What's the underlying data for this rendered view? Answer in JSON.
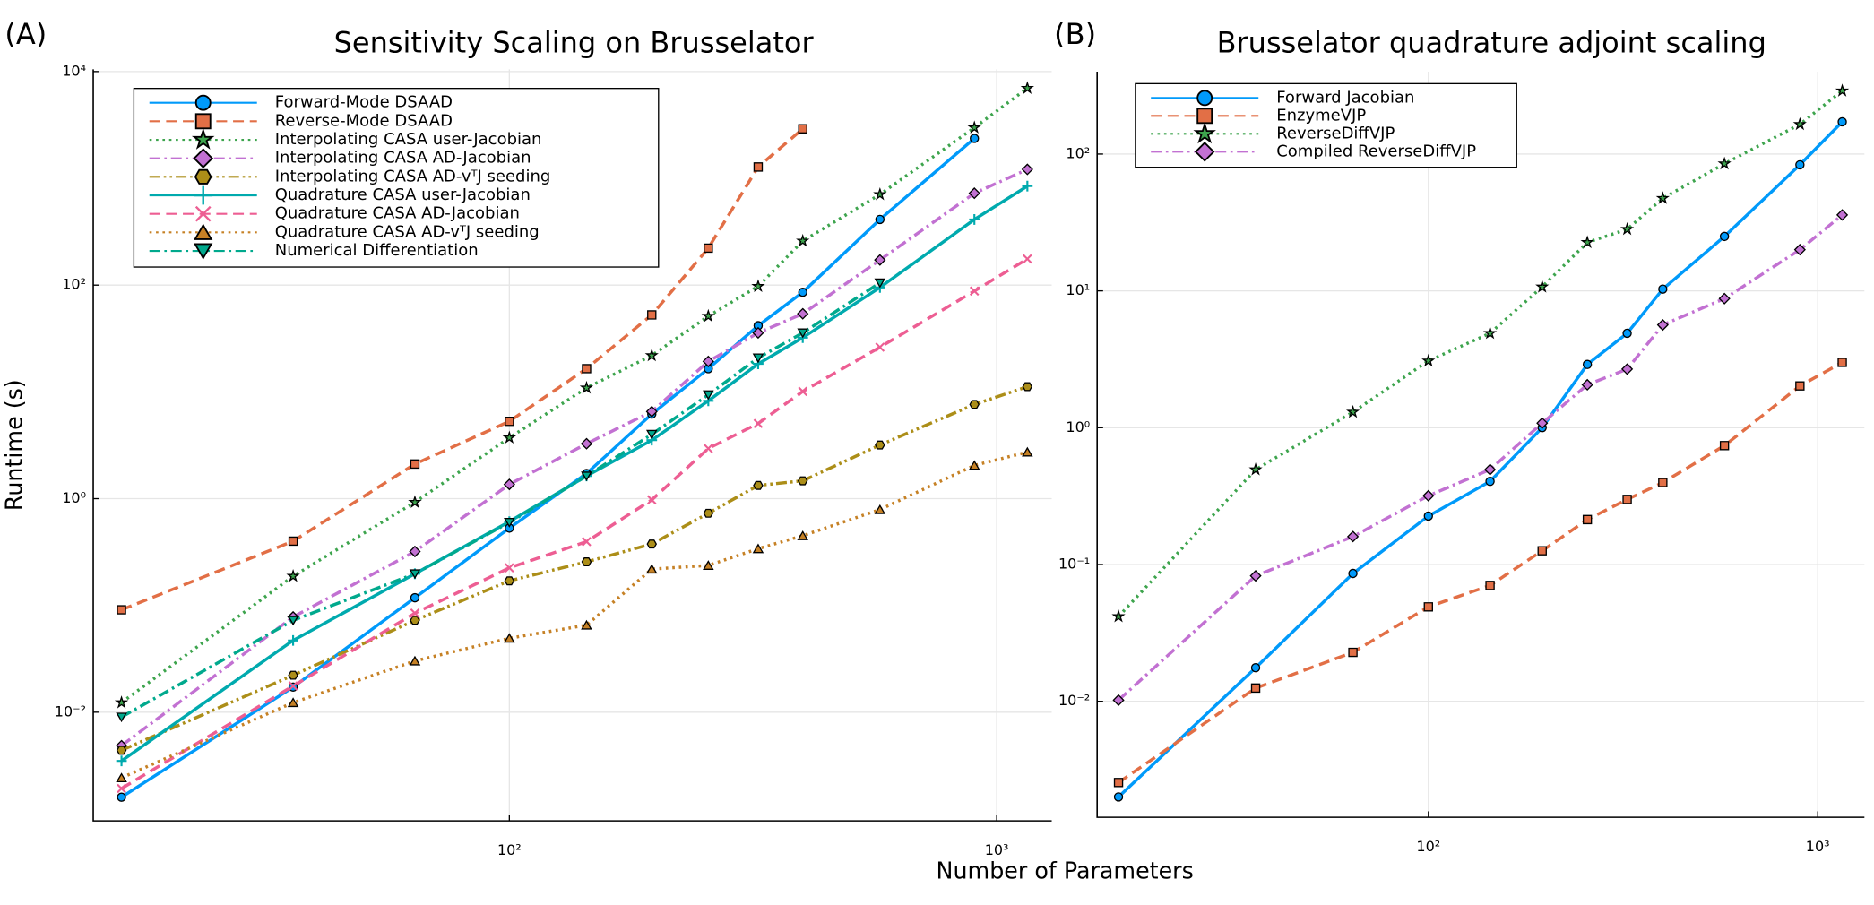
{
  "chart_data": [
    {
      "type": "line",
      "panel": "(A)",
      "title": "Sensitivity Scaling on Brusselator",
      "xlabel": "Number of Parameters",
      "ylabel": "Runtime (s)",
      "xscale": "log",
      "yscale": "log",
      "grid": true,
      "legend": "upper left",
      "xlim": [
        14,
        1297
      ],
      "ylim": [
        0.00096,
        10500
      ],
      "xticks": [
        {
          "value": 100,
          "label": "10²"
        },
        {
          "value": 1000,
          "label": "10³"
        }
      ],
      "yticks": [
        {
          "value": 0.01,
          "label": "10⁻²"
        },
        {
          "value": 1,
          "label": "10⁰"
        },
        {
          "value": 100,
          "label": "10²"
        },
        {
          "value": 10000,
          "label": "10⁴"
        }
      ],
      "x": [
        16,
        36,
        64,
        100,
        144,
        196,
        256,
        324,
        400,
        576,
        900,
        1156
      ],
      "series": [
        {
          "name": "Forward-Mode DSAAD",
          "color": "#009afa",
          "dash": "solid",
          "marker": "circle",
          "values": [
            0.0016,
            0.0172,
            0.118,
            0.53,
            1.72,
            6.2,
            16.5,
            41.7,
            85.7,
            412,
            2367,
            null
          ]
        },
        {
          "name": "Reverse-Mode DSAAD",
          "color": "#e26f46",
          "dash": "dash",
          "marker": "square",
          "values": [
            0.091,
            0.4,
            2.11,
            5.3,
            16.5,
            52.6,
            222,
            1277,
            2910,
            null,
            null,
            null
          ]
        },
        {
          "name": "Interpolating CASA user-Jacobian",
          "color": "#3da44d",
          "dash": "dot",
          "marker": "star",
          "values": [
            0.0123,
            0.188,
            0.925,
            3.72,
            10.9,
            21.9,
            51.2,
            97.5,
            259,
            707,
            2985,
            6980
          ]
        },
        {
          "name": "Interpolating CASA AD-Jacobian",
          "color": "#c271d2",
          "dash": "dashdot",
          "marker": "diamond",
          "values": [
            0.00486,
            0.078,
            0.32,
            1.36,
            3.27,
            6.54,
            19.3,
            35.7,
            53.9,
            172,
            725,
            1213
          ]
        },
        {
          "name": "Interpolating CASA AD-vᵀJ seeding",
          "color": "#ac8e18",
          "dash": "dashdotdot",
          "marker": "hexagon",
          "values": [
            0.0044,
            0.0222,
            0.0725,
            0.17,
            0.256,
            0.376,
            0.73,
            1.33,
            1.47,
            3.18,
            7.63,
            11.2
          ]
        },
        {
          "name": "Quadrature CASA user-Jacobian",
          "color": "#00aaae",
          "dash": "solid",
          "marker": "cross",
          "values": [
            0.0035,
            0.047,
            0.198,
            0.61,
            1.63,
            3.53,
            8.25,
            18.3,
            32.2,
            95,
            412,
            846
          ]
        },
        {
          "name": "Quadrature CASA AD-Jacobian",
          "color": "#ed5e93",
          "dash": "dash",
          "marker": "xcross",
          "values": [
            0.00193,
            0.0176,
            0.0846,
            0.225,
            0.396,
            0.975,
            2.95,
            5.06,
            10.1,
            26.2,
            88,
            176
          ]
        },
        {
          "name": "Quadrature CASA AD-vᵀJ seeding",
          "color": "#c68125",
          "dash": "dot",
          "marker": "utriangle",
          "values": [
            0.00243,
            0.0123,
            0.0302,
            0.0493,
            0.0654,
            0.219,
            0.237,
            0.34,
            0.45,
            0.79,
            2.05,
            2.73
          ]
        },
        {
          "name": "Numerical Differentiation",
          "color": "#00a98d",
          "dash": "dashdot",
          "marker": "dtriangle",
          "values": [
            0.009,
            0.0725,
            0.198,
            0.6,
            1.63,
            4.0,
            9.4,
            20.8,
            35.7,
            105,
            null,
            null
          ]
        }
      ]
    },
    {
      "type": "line",
      "panel": "(B)",
      "title": "Brusselator quadrature adjoint scaling",
      "xscale": "log",
      "yscale": "log",
      "grid": true,
      "legend": "upper left",
      "xlim": [
        14.1,
        1318
      ],
      "ylim": [
        0.00142,
        400
      ],
      "xticks": [
        {
          "value": 100,
          "label": "10²"
        },
        {
          "value": 1000,
          "label": "10³"
        }
      ],
      "yticks": [
        {
          "value": 0.01,
          "label": "10⁻²"
        },
        {
          "value": 0.1,
          "label": "10⁻¹"
        },
        {
          "value": 1,
          "label": "10⁰"
        },
        {
          "value": 10,
          "label": "10¹"
        },
        {
          "value": 100,
          "label": "10²"
        }
      ],
      "x": [
        16,
        36,
        64,
        100,
        144,
        196,
        256,
        324,
        400,
        576,
        900,
        1156
      ],
      "series": [
        {
          "name": "Forward Jacobian",
          "color": "#009afa",
          "dash": "solid",
          "marker": "circle",
          "values": [
            0.002,
            0.0176,
            0.086,
            0.226,
            0.405,
            1.0,
            2.9,
            4.9,
            10.3,
            25,
            83.5,
            172
          ]
        },
        {
          "name": "EnzymeVJP",
          "color": "#e26f46",
          "dash": "dash",
          "marker": "square",
          "values": [
            0.00255,
            0.0125,
            0.0228,
            0.049,
            0.0703,
            0.126,
            0.213,
            0.299,
            0.397,
            0.74,
            2.02,
            3.0
          ]
        },
        {
          "name": "ReverseDiffVJP",
          "color": "#3da44d",
          "dash": "dot",
          "marker": "star",
          "values": [
            0.0417,
            0.494,
            1.3,
            3.08,
            4.9,
            10.7,
            22.6,
            28.2,
            47.5,
            85,
            165,
            290
          ]
        },
        {
          "name": "Compiled ReverseDiffVJP",
          "color": "#c271d2",
          "dash": "dashdot",
          "marker": "diamond",
          "values": [
            0.0102,
            0.0826,
            0.16,
            0.318,
            0.494,
            1.08,
            2.06,
            2.68,
            5.64,
            8.78,
            20,
            35.9
          ]
        }
      ]
    }
  ]
}
